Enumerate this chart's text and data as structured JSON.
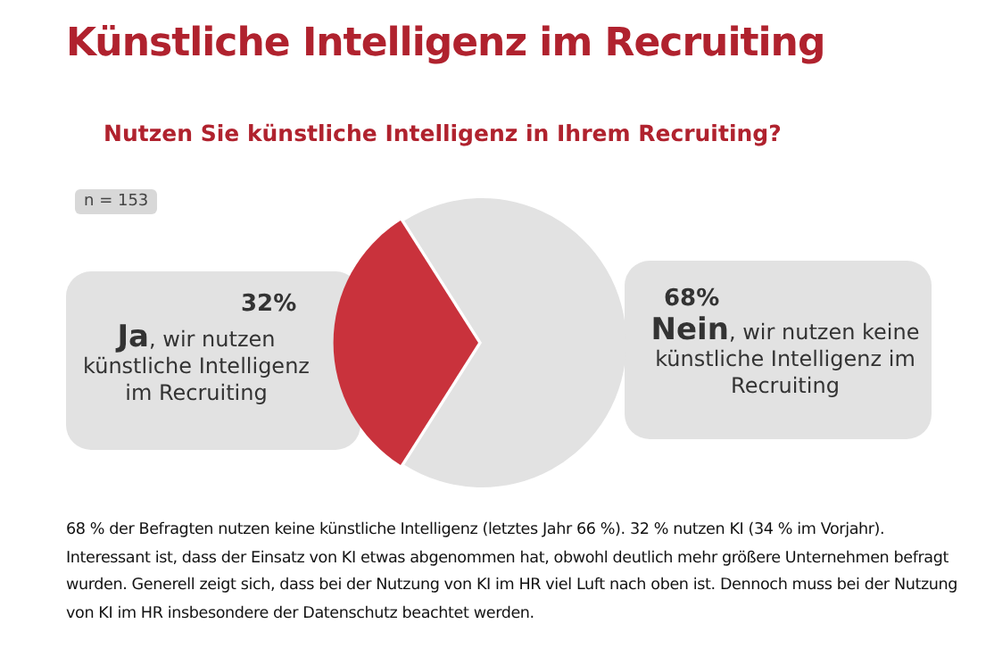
{
  "chart_data": {
    "type": "pie",
    "title": "Künstliche Intelligenz im Recruiting",
    "subtitle": "Nutzen Sie künstliche Intelligenz in Ihrem Recruiting?",
    "categories": [
      "Ja, wir nutzen künstliche Intelligenz im Recruiting",
      "Nein, wir nutzen keine künstliche Intelligenz im Recruiting"
    ],
    "values": [
      32,
      68
    ],
    "colors": [
      "#c9323c",
      "#e2e2e2"
    ],
    "value_labels": [
      "32%",
      "68%"
    ],
    "annotations": [
      "n = 153",
      "68 % der Befragten nutzen keine künstliche Intelligenz (letztes Jahr 66 %). 32 % nutzen KI (34 % im Vorjahr). Interessant ist, dass der Einsatz von KI etwas abgenommen hat, obwohl deutlich mehr größere Unternehmen befragt wurden. Generell zeigt sich, dass bei der Nutzung von KI im HR viel Luft nach oben ist. Dennoch muss bei der Nutzung von KI im HR insbesondere der Datenschutz beachtet werden."
    ],
    "legend": false
  }
}
